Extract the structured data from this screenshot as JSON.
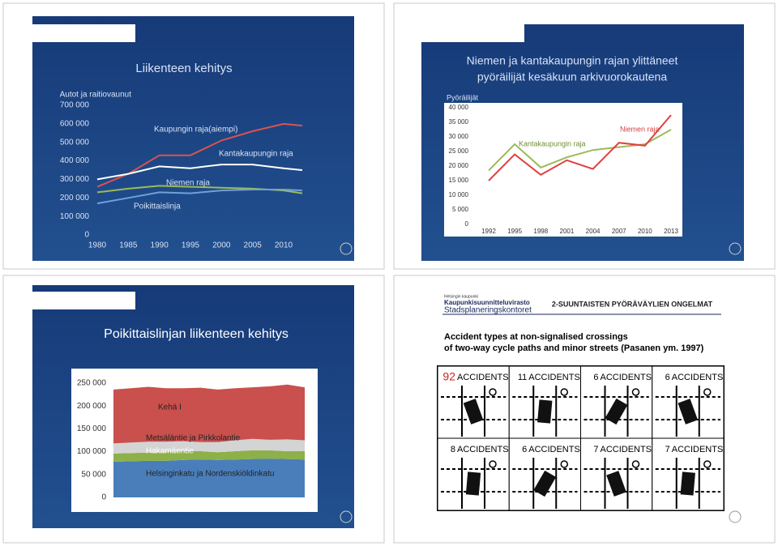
{
  "slides": [
    {
      "title": "Liikenteen kehitys",
      "chart": {
        "type": "line",
        "y_label": "Autot ja raitiovaunut",
        "x": [
          1980,
          1985,
          1990,
          1995,
          2000,
          2005,
          2010,
          2013
        ],
        "xlim": [
          1980,
          2013
        ],
        "xticks": [
          1980,
          1985,
          1990,
          1995,
          2000,
          2005,
          2010
        ],
        "ylim": [
          0,
          700000
        ],
        "yticks": [
          0,
          {
            "value": 100000,
            "label": "100 000"
          },
          {
            "value": 200000,
            "label": "200 000"
          },
          {
            "value": 300000,
            "label": "300 000"
          },
          {
            "value": 400000,
            "label": "400 000"
          },
          {
            "value": 500000,
            "label": "500 000"
          },
          {
            "value": 600000,
            "label": "600 000"
          },
          {
            "value": 700000,
            "label": "700 000"
          }
        ],
        "series": [
          {
            "name": "Kaupungin raja(aiempi)",
            "color": "#d9534f",
            "values": [
              260000,
              330000,
              430000,
              430000,
              510000,
              560000,
              600000,
              590000
            ]
          },
          {
            "name": "Kantakaupungin raja",
            "color": "#ffffff",
            "values": [
              300000,
              330000,
              370000,
              360000,
              380000,
              380000,
              360000,
              350000
            ]
          },
          {
            "name": "Niemen raja",
            "color": "#9bbb59",
            "values": [
              230000,
              250000,
              265000,
              260000,
              255000,
              250000,
              240000,
              225000
            ]
          },
          {
            "name": "Poikittaislinja",
            "color": "#6fa0dc",
            "values": [
              170000,
              200000,
              230000,
              225000,
              240000,
              245000,
              245000,
              240000
            ]
          }
        ]
      }
    },
    {
      "title": [
        "Niemen ja kantakaupungin rajan ylittäneet",
        "pyöräilijät kesäkuun arkivuorokautena"
      ],
      "chart": {
        "type": "line",
        "y_label": "Pyöräilijät",
        "categories": [
          1992,
          1995,
          1998,
          2001,
          2004,
          2007,
          2010,
          2013
        ],
        "ylim": [
          0,
          40000
        ],
        "yticks": [
          0,
          {
            "value": 5000,
            "label": "5 000"
          },
          {
            "value": 10000,
            "label": "10 000"
          },
          {
            "value": 15000,
            "label": "15 000"
          },
          {
            "value": 20000,
            "label": "20 000"
          },
          {
            "value": 25000,
            "label": "25 000"
          },
          {
            "value": 30000,
            "label": "30 000"
          },
          {
            "value": 35000,
            "label": "35 000"
          },
          {
            "value": 40000,
            "label": "40 000"
          }
        ],
        "series": [
          {
            "name": "Kantakaupungin raja",
            "color": "#9bbb59",
            "values": [
              18500,
              27500,
              19500,
              23000,
              25500,
              26500,
              27500,
              32500
            ]
          },
          {
            "name": "Niemen raja",
            "color": "#e04040",
            "values": [
              15000,
              24000,
              17000,
              22000,
              19000,
              28000,
              27000,
              37500
            ]
          }
        ]
      }
    },
    {
      "title": "Poikittaislinjan liikenteen kehitys",
      "chart": {
        "type": "area",
        "categories": [
          null,
          null,
          null,
          null,
          null,
          null,
          null,
          null,
          null,
          null,
          null,
          null
        ],
        "ylim": [
          0,
          250000
        ],
        "yticks": [
          0,
          {
            "value": 50000,
            "label": "50 000"
          },
          {
            "value": 100000,
            "label": "100 000"
          },
          {
            "value": 150000,
            "label": "150 000"
          },
          {
            "value": 200000,
            "label": "200 000"
          },
          {
            "value": 250000,
            "label": "250 000"
          }
        ],
        "series": [
          {
            "name": "Helsinginkatu ja Nordenskiöldinkatu",
            "color": "#4a7ebb",
            "values": [
              78000,
              79000,
              80000,
              80000,
              82000,
              83000,
              82000,
              83000,
              84000,
              85000,
              84000,
              83000
            ]
          },
          {
            "name": "Hakamäentie",
            "color": "#8db048",
            "values": [
              18000,
              18000,
              18000,
              19000,
              19000,
              18000,
              17000,
              18000,
              19000,
              18000,
              17000,
              18000
            ]
          },
          {
            "name": "Metsäläntie ja Pirkkolantie",
            "color": "#d4d4d4",
            "values": [
              22000,
              23000,
              24000,
              23000,
              22000,
              20000,
              22000,
              24000,
              25000,
              23000,
              26000,
              24000
            ]
          },
          {
            "name": "Kehä I",
            "color": "#c9504d",
            "values": [
              118000,
              119000,
              120000,
              117000,
              116000,
              119000,
              115000,
              114000,
              113000,
              117000,
              120000,
              116000
            ]
          }
        ]
      }
    },
    {
      "header": {
        "org_small": "Helsingin kaupunki",
        "org": "Kaupunkisuunnitteluvirasto",
        "org_sv": "Stadsplaneringskontoret",
        "title": "2-SUUNTAISTEN PYÖRÄVÄYLIEN ONGELMAT"
      },
      "caption": [
        "Accident types at non-signalised crossings",
        "of two-way cycle paths and minor streets (Pasanen ym. 1997)"
      ],
      "cells": [
        {
          "count": 92,
          "label": "ACCIDENTS"
        },
        {
          "count": 11,
          "label": "ACCIDENTS"
        },
        {
          "count": 6,
          "label": "ACCIDENTS"
        },
        {
          "count": 6,
          "label": "ACCIDENTS"
        },
        {
          "count": 8,
          "label": "ACCIDENTS"
        },
        {
          "count": 6,
          "label": "ACCIDENTS"
        },
        {
          "count": 7,
          "label": "ACCIDENTS"
        },
        {
          "count": 7,
          "label": "ACCIDENTS"
        }
      ]
    }
  ]
}
